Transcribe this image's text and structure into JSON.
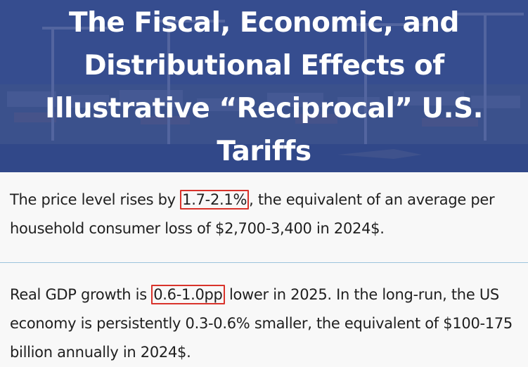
{
  "hero": {
    "title": "The Fiscal, Economic, and Distributional Effects of Illustrative “Reciprocal” U.S. Tariffs",
    "background": "port-cranes-photo"
  },
  "findings": [
    {
      "before": "The price level rises by ",
      "highlight": "1.7-2.1%",
      "after": ", the equivalent of an average per household consumer loss of $2,700-3,400 in 2024$."
    },
    {
      "before": "Real GDP growth is ",
      "highlight": "0.6-1.0pp",
      "after": " lower in 2025. In the long-run, the US economy is persistently 0.3-0.6% smaller, the equivalent of $100-175 billion annually in 2024$."
    }
  ],
  "colors": {
    "hero_blue": "#2e4488",
    "highlight_border": "#d9332b",
    "divider": "#9cc4dc",
    "text": "#1f1f1f"
  }
}
